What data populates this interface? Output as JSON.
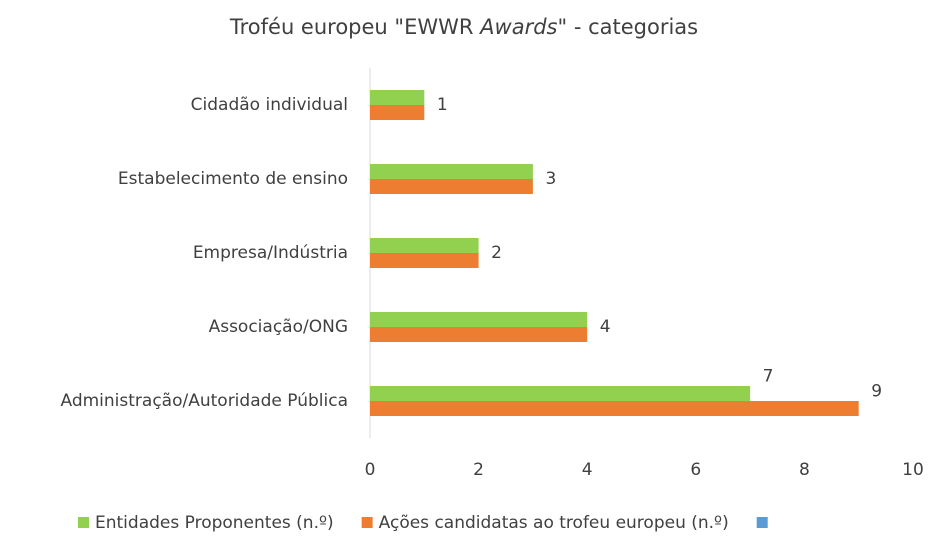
{
  "chart_data": {
    "type": "bar",
    "orientation": "horizontal",
    "title": [
      "Troféu europeu \"EWWR ",
      "Awards",
      "\" - categorias"
    ],
    "categories": [
      "Cidadão individual",
      "Estabelecimento de ensino",
      "Empresa/Indústria",
      "Associação/ONG",
      "Administração/Autoridade Pública"
    ],
    "series": [
      {
        "name": "Entidades Proponentes (n.º)",
        "color": "#92d050",
        "values": [
          1,
          3,
          2,
          4,
          7
        ]
      },
      {
        "name": "Ações candidatas ao trofeu europeu (n.º)",
        "color": "#ed7d31",
        "values": [
          1,
          3,
          2,
          4,
          9
        ]
      },
      {
        "name": null,
        "color": "#5b9bd5",
        "values": [
          null,
          null,
          null,
          null,
          null
        ]
      }
    ],
    "xlim": [
      0,
      10
    ],
    "xticks": [
      0,
      2,
      4,
      6,
      8,
      10
    ],
    "grid": false,
    "legend": "bottom"
  }
}
